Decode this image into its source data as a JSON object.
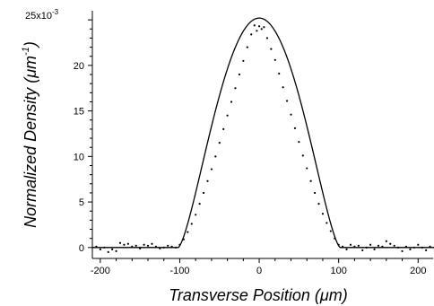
{
  "chart_data": {
    "type": "scatter",
    "title": "",
    "xlabel": "Transverse Position (μm)",
    "ylabel_main": "Normalized Density (μm",
    "ylabel_sup": "-1",
    "ylabel_close": ")",
    "y_multiplier_label": "x10",
    "y_multiplier_exp": "-3",
    "xlim": [
      -210,
      220
    ],
    "ylim": [
      -1.2,
      26
    ],
    "grid": false,
    "legend": "none",
    "x_ticks": [
      -200,
      -100,
      0,
      100,
      200
    ],
    "y_ticks": [
      0,
      5,
      10,
      15,
      20,
      25
    ],
    "x_tick_labels": [
      "-200",
      "-100",
      "0",
      "100",
      "200"
    ],
    "y_tick_labels": [
      "0",
      "5",
      "10",
      "15",
      "20",
      "25"
    ],
    "fit_curve": {
      "description": "truncated parabolic profile",
      "peak": 25.2,
      "center": 0,
      "half_width": 102,
      "x": [
        -210,
        -102,
        -95,
        -90,
        -85,
        -80,
        -75,
        -70,
        -65,
        -60,
        -55,
        -50,
        -45,
        -40,
        -35,
        -30,
        -25,
        -20,
        -15,
        -10,
        -5,
        0,
        5,
        10,
        15,
        20,
        25,
        30,
        35,
        40,
        45,
        50,
        55,
        60,
        65,
        70,
        75,
        80,
        85,
        90,
        95,
        102,
        220
      ],
      "y": [
        0,
        0,
        0.7,
        1.5,
        2.4,
        3.4,
        4.5,
        5.7,
        7.0,
        8.4,
        9.8,
        11.3,
        12.8,
        14.3,
        15.8,
        17.3,
        18.7,
        20.1,
        21.4,
        22.6,
        23.6,
        25.2,
        23.6,
        22.6,
        21.4,
        20.1,
        18.7,
        17.3,
        15.8,
        14.3,
        12.8,
        11.3,
        9.8,
        8.4,
        7.0,
        5.7,
        4.5,
        3.4,
        2.4,
        1.5,
        0.7,
        0,
        0
      ]
    },
    "series": [
      {
        "x": [
          -205,
          -200,
          -195,
          -190,
          -185,
          -180,
          -175,
          -170,
          -165,
          -160,
          -155,
          -150,
          -145,
          -140,
          -135,
          -130,
          -125,
          -120,
          -115,
          -110,
          -105,
          -100,
          -95,
          -90,
          -85,
          -80,
          -75,
          -70,
          -65,
          -60,
          -55,
          -50,
          -45,
          -40,
          -35,
          -30,
          -25,
          -20,
          -15,
          -10,
          -6,
          -3,
          0,
          3,
          6,
          10,
          15,
          20,
          25,
          30,
          35,
          40,
          45,
          50,
          55,
          60,
          65,
          70,
          75,
          80,
          85,
          90,
          95,
          100,
          105,
          110,
          115,
          120,
          125,
          130,
          135,
          140,
          145,
          150,
          155,
          160,
          165,
          170,
          175,
          180,
          185,
          190,
          195,
          200,
          205,
          210,
          215
        ],
        "y": [
          0.1,
          -0.2,
          0.0,
          -0.5,
          -0.2,
          -0.4,
          0.5,
          0.3,
          0.4,
          0.1,
          0.2,
          -0.1,
          0.3,
          0.2,
          0.4,
          0.1,
          -0.1,
          0.0,
          0.2,
          0.1,
          0.0,
          0.3,
          0.9,
          1.7,
          2.6,
          3.6,
          4.8,
          6.0,
          7.3,
          8.6,
          10.0,
          11.5,
          13.0,
          14.5,
          16.0,
          17.5,
          19.0,
          20.5,
          22.0,
          23.4,
          24.4,
          23.8,
          24.3,
          24.0,
          24.2,
          23.0,
          21.8,
          20.6,
          19.1,
          17.6,
          16.1,
          14.6,
          13.1,
          11.6,
          10.1,
          8.7,
          7.3,
          6.0,
          4.8,
          3.7,
          2.7,
          1.8,
          1.0,
          0.3,
          0.1,
          -0.2,
          0.3,
          0.1,
          0.2,
          -0.3,
          0.0,
          0.3,
          -0.2,
          0.2,
          0.1,
          0.7,
          0.4,
          0.2,
          0.0,
          -0.4,
          0.1,
          -0.2,
          0.0,
          0.3,
          0.0,
          -0.3,
          0.1
        ]
      }
    ]
  }
}
